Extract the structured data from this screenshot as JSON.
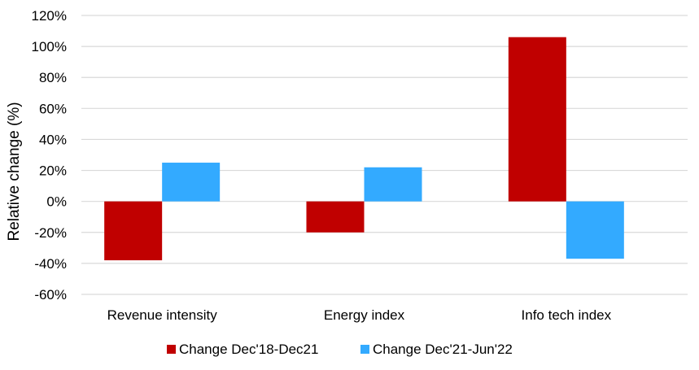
{
  "chart_data": {
    "type": "bar",
    "categories": [
      "Revenue intensity",
      "Energy index",
      "Info tech index"
    ],
    "series": [
      {
        "name": "Change Dec'18-Dec21",
        "color": "#C00000",
        "values": [
          -38,
          -20,
          106
        ]
      },
      {
        "name": "Change Dec'21-Jun'22",
        "color": "#33AAFF",
        "values": [
          25,
          22,
          -37
        ]
      }
    ],
    "title": "",
    "xlabel": "",
    "ylabel": "Relative change (%)",
    "ylim": [
      -60,
      120
    ],
    "yticks": [
      120,
      100,
      80,
      60,
      40,
      20,
      0,
      -20,
      -40,
      -60
    ],
    "ytick_labels": [
      "120%",
      "100%",
      "80%",
      "60%",
      "40%",
      "20%",
      "0%",
      "-20%",
      "-40%",
      "-60%"
    ],
    "grid": true,
    "legend_position": "bottom"
  }
}
